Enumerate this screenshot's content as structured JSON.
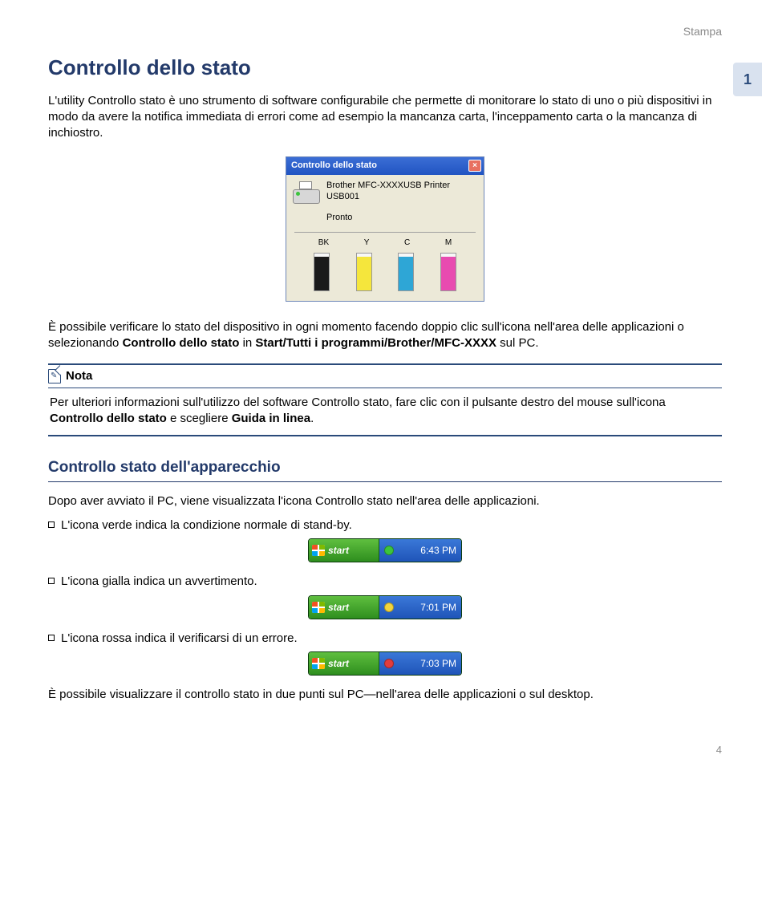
{
  "header": {
    "section": "Stampa",
    "tab_number": "1",
    "page_number": "4"
  },
  "title": "Controllo dello stato",
  "intro": "L'utility Controllo stato è uno strumento di software configurabile che permette di monitorare lo stato di uno o più dispositivi in modo da avere la notifica immediata di errori come ad esempio la mancanza carta, l'inceppamento carta o la mancanza di inchiostro.",
  "status_window": {
    "title": "Controllo dello stato",
    "printer_line1": "Brother MFC-XXXXUSB Printer",
    "printer_line2": "USB001",
    "ready": "Pronto",
    "inks": [
      {
        "label": "BK",
        "color": "#1a1a1a",
        "level": 0.92
      },
      {
        "label": "Y",
        "color": "#f5e63c",
        "level": 0.92
      },
      {
        "label": "C",
        "color": "#2ea6d6",
        "level": 0.92
      },
      {
        "label": "M",
        "color": "#e84bb0",
        "level": 0.92
      }
    ]
  },
  "para2_pre": "È possibile verificare lo stato del dispositivo in ogni momento facendo doppio clic sull'icona nell'area delle applicazioni o selezionando ",
  "para2_b1": "Controllo dello stato",
  "para2_mid": " in ",
  "para2_b2": "Start/Tutti i programmi/Brother/MFC-XXXX",
  "para2_post": " sul PC.",
  "note": {
    "title": "Nota",
    "text_pre": "Per ulteriori informazioni sull'utilizzo del software Controllo stato, fare clic con il pulsante destro del mouse sull'icona ",
    "text_b1": "Controllo dello stato",
    "text_mid": " e scegliere ",
    "text_b2": "Guida in linea",
    "text_post": "."
  },
  "subhead": "Controllo stato dell'apparecchio",
  "after_sub": "Dopo aver avviato il PC, viene visualizzata l'icona Controllo stato nell'area delle applicazioni.",
  "bullets": [
    {
      "text": "L'icona verde indica la condizione normale di stand-by.",
      "dot_color": "#3cc43c",
      "time": "6:43 PM"
    },
    {
      "text": "L'icona gialla indica un avvertimento.",
      "dot_color": "#f2d43c",
      "time": "7:01 PM"
    },
    {
      "text": "L'icona rossa indica il verificarsi di un errore.",
      "dot_color": "#e23c3c",
      "time": "7:03 PM"
    }
  ],
  "start_label": "start",
  "final": "È possibile visualizzare il controllo stato in due punti sul PC—nell'area delle applicazioni o sul desktop."
}
